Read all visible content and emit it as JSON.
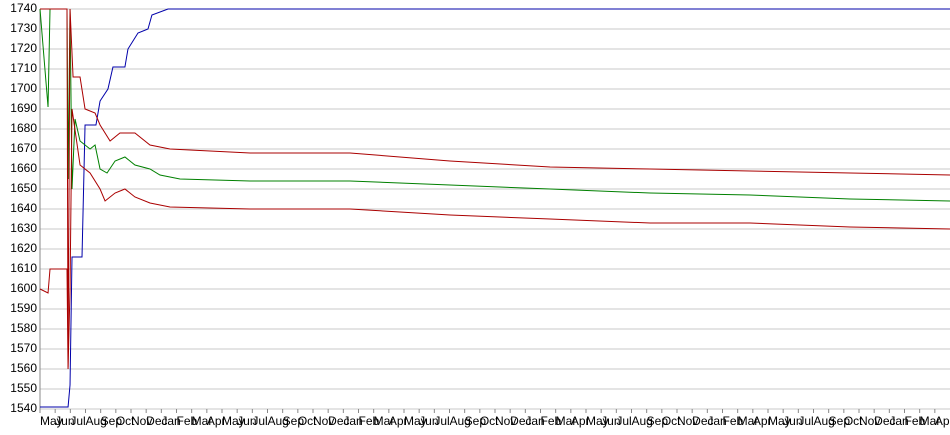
{
  "chart_data": {
    "type": "line",
    "ylim": [
      1540,
      1740
    ],
    "yticks": [
      1540,
      1550,
      1560,
      1570,
      1580,
      1590,
      1600,
      1610,
      1620,
      1630,
      1640,
      1650,
      1660,
      1670,
      1680,
      1690,
      1700,
      1710,
      1720,
      1730,
      1740
    ],
    "xlim": [
      0,
      60
    ],
    "xticks": [
      {
        "value": 0,
        "label": "May"
      },
      {
        "value": 1,
        "label": "Jun"
      },
      {
        "value": 2,
        "label": "Jul"
      },
      {
        "value": 3,
        "label": "Aug"
      },
      {
        "value": 4,
        "label": "Sep"
      },
      {
        "value": 5,
        "label": "Oct"
      },
      {
        "value": 6,
        "label": "Nov"
      },
      {
        "value": 7,
        "label": "Dec"
      },
      {
        "value": 8,
        "label": "Jan"
      },
      {
        "value": 9,
        "label": "Feb"
      },
      {
        "value": 10,
        "label": "Mar"
      },
      {
        "value": 11,
        "label": "Apr"
      },
      {
        "value": 12,
        "label": "May"
      },
      {
        "value": 13,
        "label": "Jun"
      },
      {
        "value": 14,
        "label": "Jul"
      },
      {
        "value": 15,
        "label": "Aug"
      },
      {
        "value": 16,
        "label": "Sep"
      },
      {
        "value": 17,
        "label": "Oct"
      },
      {
        "value": 18,
        "label": "Nov"
      },
      {
        "value": 19,
        "label": "Dec"
      },
      {
        "value": 20,
        "label": "Jan"
      },
      {
        "value": 21,
        "label": "Feb"
      },
      {
        "value": 22,
        "label": "Mar"
      },
      {
        "value": 23,
        "label": "Apr"
      },
      {
        "value": 24,
        "label": "May"
      },
      {
        "value": 25,
        "label": "Jun"
      },
      {
        "value": 26,
        "label": "Jul"
      },
      {
        "value": 27,
        "label": "Aug"
      },
      {
        "value": 28,
        "label": "Sep"
      },
      {
        "value": 29,
        "label": "Oct"
      },
      {
        "value": 30,
        "label": "Nov"
      },
      {
        "value": 31,
        "label": "Dec"
      },
      {
        "value": 32,
        "label": "Jan"
      },
      {
        "value": 33,
        "label": "Feb"
      },
      {
        "value": 34,
        "label": "Mar"
      },
      {
        "value": 35,
        "label": "Apr"
      },
      {
        "value": 36,
        "label": "May"
      },
      {
        "value": 37,
        "label": "Jun"
      },
      {
        "value": 38,
        "label": "Jul"
      },
      {
        "value": 39,
        "label": "Aug"
      },
      {
        "value": 40,
        "label": "Sep"
      },
      {
        "value": 41,
        "label": "Oct"
      },
      {
        "value": 42,
        "label": "Nov"
      },
      {
        "value": 43,
        "label": "Dec"
      },
      {
        "value": 44,
        "label": "Jan"
      },
      {
        "value": 45,
        "label": "Feb"
      },
      {
        "value": 46,
        "label": "Mar"
      },
      {
        "value": 47,
        "label": "Apr"
      },
      {
        "value": 48,
        "label": "May"
      },
      {
        "value": 49,
        "label": "Jun"
      },
      {
        "value": 50,
        "label": "Jul"
      },
      {
        "value": 51,
        "label": "Aug"
      },
      {
        "value": 52,
        "label": "Sep"
      },
      {
        "value": 53,
        "label": "Oct"
      },
      {
        "value": 54,
        "label": "Nov"
      },
      {
        "value": 55,
        "label": "Dec"
      },
      {
        "value": 56,
        "label": "Jan"
      },
      {
        "value": 57,
        "label": "Feb"
      },
      {
        "value": 58,
        "label": "Mar"
      },
      {
        "value": 59,
        "label": "Apr"
      }
    ],
    "grid": true,
    "series": [
      {
        "color": "#0000aa",
        "x": [
          0,
          1.85,
          1.98,
          2.11,
          2.77,
          2.97,
          3.69,
          3.96,
          4.48,
          4.81,
          5.6,
          5.8,
          6.46,
          7.12,
          7.38,
          8.44,
          60
        ],
        "values": [
          1541,
          1541,
          1552,
          1616,
          1616,
          1682,
          1682,
          1694,
          1700,
          1711,
          1711,
          1720,
          1728,
          1730,
          1737,
          1740,
          1740
        ]
      },
      {
        "color": "#008000",
        "x": [
          0,
          0.53,
          0.66,
          1.78,
          1.85,
          1.98,
          2.11,
          2.31,
          2.64,
          3.3,
          3.63,
          3.96,
          4.42,
          4.95,
          5.6,
          6.26,
          7.25,
          7.91,
          9.23,
          13.85,
          20.44,
          27.03,
          33.63,
          40.22,
          46.81,
          53.41,
          60
        ],
        "values": [
          1740,
          1691,
          1740,
          1740,
          1655,
          1740,
          1650,
          1685,
          1674,
          1670,
          1672,
          1660,
          1658,
          1664,
          1666,
          1662,
          1660,
          1657,
          1655,
          1654,
          1654,
          1652,
          1650,
          1648,
          1647,
          1645,
          1644
        ]
      },
      {
        "color": "#aa0000",
        "x": [
          0,
          1.78,
          1.85,
          1.98,
          2.18,
          2.64,
          2.97,
          3.63,
          3.96,
          4.62,
          5.27,
          6.26,
          7.25,
          8.57,
          13.85,
          20.44,
          27.03,
          33.63,
          40.22,
          46.81,
          53.41,
          60
        ],
        "values": [
          1740,
          1740,
          1561,
          1740,
          1706,
          1706,
          1690,
          1688,
          1682,
          1674,
          1678,
          1678,
          1672,
          1670,
          1668,
          1668,
          1664,
          1661,
          1660,
          1659,
          1658,
          1657
        ]
      },
      {
        "color": "#aa0000",
        "x": [
          0,
          0.53,
          0.66,
          1.78,
          1.85,
          1.98,
          2.11,
          2.64,
          3.3,
          3.96,
          4.29,
          4.95,
          5.6,
          6.26,
          7.25,
          8.57,
          13.85,
          20.44,
          27.03,
          33.63,
          40.22,
          46.81,
          53.41,
          60
        ],
        "values": [
          1600,
          1598,
          1610,
          1610,
          1560,
          1600,
          1690,
          1662,
          1658,
          1650,
          1644,
          1648,
          1650,
          1646,
          1643,
          1641,
          1640,
          1640,
          1637,
          1635,
          1633,
          1633,
          1631,
          1630
        ]
      }
    ]
  }
}
